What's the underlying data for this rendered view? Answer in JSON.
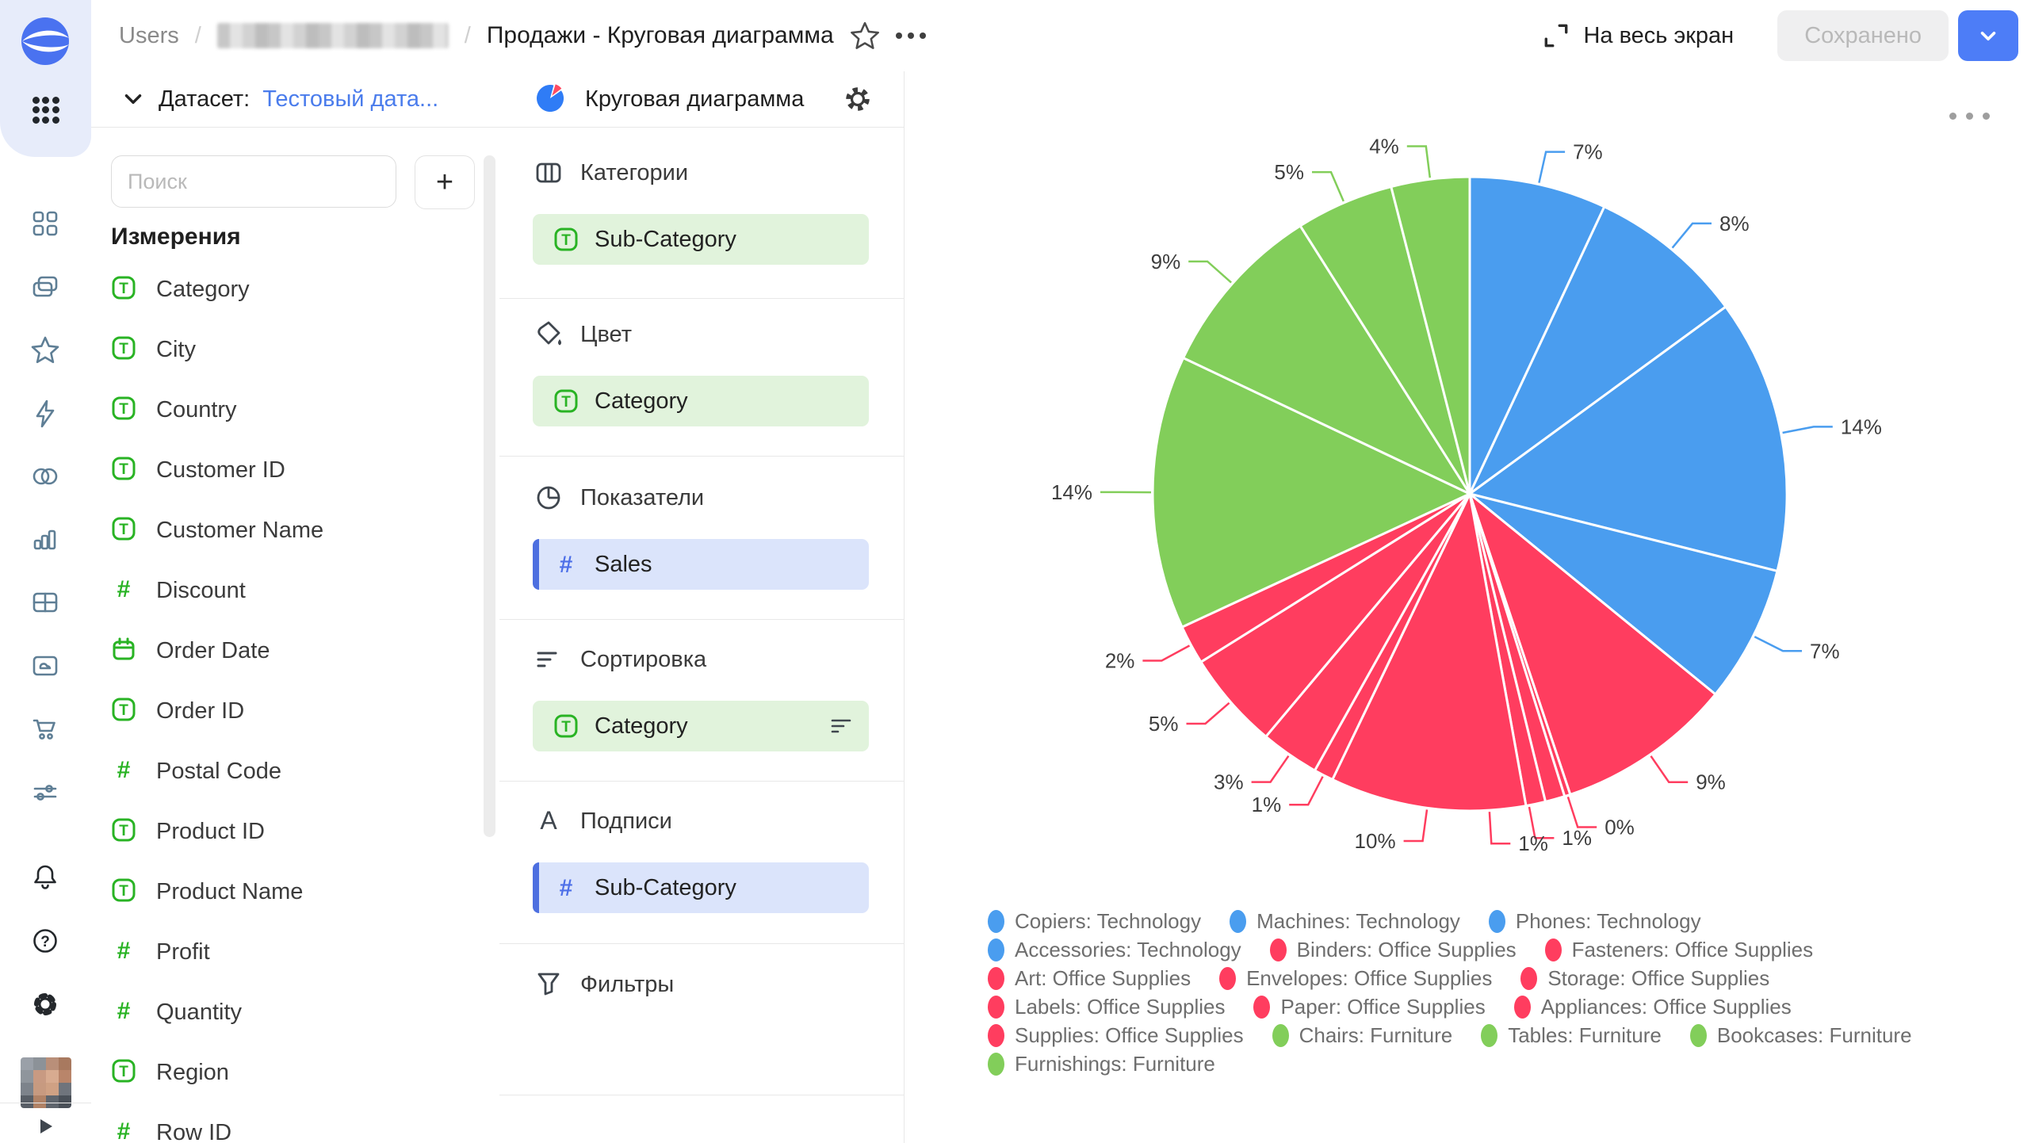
{
  "topbar": {
    "breadcrumb": {
      "root": "Users",
      "separator": "/",
      "hidden_item": "blurred",
      "current": "Продажи - Круговая диаграмма"
    },
    "favorite_icon": "star-icon",
    "more_icon": "ellipsis-icon",
    "fullscreen_icon": "expand-icon",
    "fullscreen_label": "На весь экран",
    "saved_button": "Сохранено",
    "save_dropdown_icon": "chevron-down-icon"
  },
  "sidebar": {
    "logo": "datalens-logo",
    "apps_icon": "apps-menu-icon",
    "top_icons": [
      "widgets",
      "collections",
      "favorites",
      "flash",
      "connections",
      "charts",
      "table",
      "cloud-folder",
      "cart",
      "sliders"
    ],
    "bottom_icons": [
      "bell",
      "help",
      "gear"
    ],
    "collapse_icon": "play-arrow-icon"
  },
  "dataset_panel": {
    "header_label": "Датасет:",
    "dataset_name": "Тестовый дата...",
    "collapse_icon": "chevron-down-icon",
    "search_placeholder": "Поиск",
    "add_button": "+",
    "dimensions_title": "Измерения",
    "fields": [
      {
        "name": "Category",
        "type": "text"
      },
      {
        "name": "City",
        "type": "text"
      },
      {
        "name": "Country",
        "type": "text"
      },
      {
        "name": "Customer ID",
        "type": "text"
      },
      {
        "name": "Customer Name",
        "type": "text"
      },
      {
        "name": "Discount",
        "type": "number"
      },
      {
        "name": "Order Date",
        "type": "date"
      },
      {
        "name": "Order ID",
        "type": "text"
      },
      {
        "name": "Postal Code",
        "type": "number"
      },
      {
        "name": "Product ID",
        "type": "text"
      },
      {
        "name": "Product Name",
        "type": "text"
      },
      {
        "name": "Profit",
        "type": "number"
      },
      {
        "name": "Quantity",
        "type": "number"
      },
      {
        "name": "Region",
        "type": "text"
      },
      {
        "name": "Row ID",
        "type": "number"
      }
    ]
  },
  "config_panel": {
    "chart_type_label": "Круговая диаграмма",
    "chart_type_icon": "pie-chart-icon",
    "settings_icon": "gear-icon",
    "sections": [
      {
        "title": "Категории",
        "icon": "columns",
        "chips": [
          {
            "label": "Sub-Category",
            "field_type": "text",
            "style": "dimension"
          }
        ]
      },
      {
        "title": "Цвет",
        "icon": "paint",
        "chips": [
          {
            "label": "Category",
            "field_type": "text",
            "style": "dimension"
          }
        ]
      },
      {
        "title": "Показатели",
        "icon": "pie",
        "chips": [
          {
            "label": "Sales",
            "field_type": "number",
            "style": "measure"
          }
        ]
      },
      {
        "title": "Сортировка",
        "icon": "sort",
        "chips": [
          {
            "label": "Category",
            "field_type": "text",
            "style": "dimension",
            "trailing_icon": "sort"
          }
        ]
      },
      {
        "title": "Подписи",
        "icon": "labelA",
        "chips": [
          {
            "label": "Sub-Category",
            "field_type": "number",
            "style": "measure"
          }
        ]
      },
      {
        "title": "Фильтры",
        "icon": "funnel",
        "chips": []
      }
    ]
  },
  "colors": {
    "dimension_green": "#29B324",
    "measure_blue": "#4D6FE8",
    "accent_blue": "#4D7DF7",
    "chip_green_bg": "#E1F3DC",
    "chip_blue_bg": "#DBE4FB",
    "chip_blue_bar": "#4D6FE0"
  },
  "chart_data": {
    "type": "pie",
    "unit": "percent",
    "legend_position": "bottom",
    "legend_format": "{label}: {category}",
    "colors_by_category": {
      "Technology": "#4A9DEF",
      "Office Supplies": "#FF3D5F",
      "Furniture": "#82CE5A"
    },
    "slices": [
      {
        "label": "Copiers",
        "category": "Technology",
        "percent": 7
      },
      {
        "label": "Machines",
        "category": "Technology",
        "percent": 8
      },
      {
        "label": "Phones",
        "category": "Technology",
        "percent": 14
      },
      {
        "label": "Accessories",
        "category": "Technology",
        "percent": 7
      },
      {
        "label": "Binders",
        "category": "Office Supplies",
        "percent": 9
      },
      {
        "label": "Fasteners",
        "category": "Office Supplies",
        "percent": 0
      },
      {
        "label": "Art",
        "category": "Office Supplies",
        "percent": 1
      },
      {
        "label": "Envelopes",
        "category": "Office Supplies",
        "percent": 1
      },
      {
        "label": "Storage",
        "category": "Office Supplies",
        "percent": 10
      },
      {
        "label": "Labels",
        "category": "Office Supplies",
        "percent": 1
      },
      {
        "label": "Paper",
        "category": "Office Supplies",
        "percent": 3
      },
      {
        "label": "Appliances",
        "category": "Office Supplies",
        "percent": 5
      },
      {
        "label": "Supplies",
        "category": "Office Supplies",
        "percent": 2
      },
      {
        "label": "Chairs",
        "category": "Furniture",
        "percent": 14
      },
      {
        "label": "Tables",
        "category": "Furniture",
        "percent": 9
      },
      {
        "label": "Bookcases",
        "category": "Furniture",
        "percent": 5
      },
      {
        "label": "Furnishings",
        "category": "Furniture",
        "percent": 4
      }
    ],
    "legend_rows": [
      [
        0,
        1,
        2
      ],
      [
        3,
        4,
        5
      ],
      [
        6,
        7,
        8
      ],
      [
        9,
        10,
        11
      ],
      [
        12,
        13,
        14,
        15
      ],
      [
        16
      ]
    ]
  }
}
